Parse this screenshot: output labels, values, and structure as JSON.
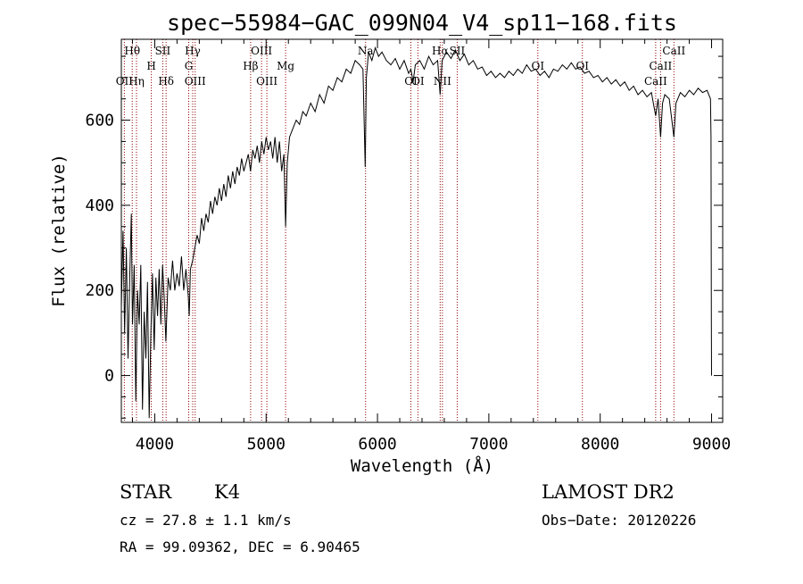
{
  "chart_data": {
    "type": "line",
    "title": "spec−55984−GAC_099N04_V4_sp11−168.fits",
    "xlabel": "Wavelength (Å)",
    "ylabel": "Flux (relative)",
    "xlim": [
      3700,
      9100
    ],
    "ylim": [
      -110,
      790
    ],
    "xticks": [
      4000,
      5000,
      6000,
      7000,
      8000,
      9000
    ],
    "yticks": [
      0,
      200,
      400,
      600
    ],
    "grid": false,
    "series": [
      {
        "name": "spectrum",
        "color": "#000000",
        "points": [
          [
            3700,
            160
          ],
          [
            3715,
            340
          ],
          [
            3730,
            100
          ],
          [
            3745,
            300
          ],
          [
            3760,
            40
          ],
          [
            3775,
            230
          ],
          [
            3790,
            380
          ],
          [
            3800,
            120
          ],
          [
            3815,
            260
          ],
          [
            3830,
            -60
          ],
          [
            3845,
            200
          ],
          [
            3860,
            120
          ],
          [
            3875,
            260
          ],
          [
            3890,
            -80
          ],
          [
            3905,
            150
          ],
          [
            3920,
            40
          ],
          [
            3935,
            220
          ],
          [
            3950,
            -100
          ],
          [
            3965,
            100
          ],
          [
            3980,
            240
          ],
          [
            3995,
            60
          ],
          [
            4010,
            230
          ],
          [
            4025,
            140
          ],
          [
            4040,
            250
          ],
          [
            4055,
            120
          ],
          [
            4070,
            260
          ],
          [
            4085,
            180
          ],
          [
            4100,
            80
          ],
          [
            4120,
            230
          ],
          [
            4140,
            200
          ],
          [
            4160,
            270
          ],
          [
            4180,
            200
          ],
          [
            4200,
            240
          ],
          [
            4220,
            210
          ],
          [
            4240,
            280
          ],
          [
            4260,
            200
          ],
          [
            4280,
            250
          ],
          [
            4300,
            190
          ],
          [
            4310,
            140
          ],
          [
            4320,
            250
          ],
          [
            4340,
            270
          ],
          [
            4360,
            300
          ],
          [
            4380,
            330
          ],
          [
            4400,
            310
          ],
          [
            4420,
            370
          ],
          [
            4440,
            340
          ],
          [
            4460,
            380
          ],
          [
            4480,
            360
          ],
          [
            4500,
            410
          ],
          [
            4520,
            380
          ],
          [
            4540,
            420
          ],
          [
            4560,
            400
          ],
          [
            4580,
            440
          ],
          [
            4600,
            410
          ],
          [
            4620,
            450
          ],
          [
            4640,
            420
          ],
          [
            4660,
            470
          ],
          [
            4680,
            440
          ],
          [
            4700,
            480
          ],
          [
            4720,
            450
          ],
          [
            4740,
            490
          ],
          [
            4760,
            470
          ],
          [
            4780,
            510
          ],
          [
            4800,
            480
          ],
          [
            4820,
            500
          ],
          [
            4840,
            520
          ],
          [
            4860,
            480
          ],
          [
            4880,
            530
          ],
          [
            4900,
            510
          ],
          [
            4920,
            540
          ],
          [
            4940,
            500
          ],
          [
            4960,
            550
          ],
          [
            4980,
            520
          ],
          [
            5000,
            560
          ],
          [
            5020,
            530
          ],
          [
            5040,
            550
          ],
          [
            5060,
            510
          ],
          [
            5080,
            560
          ],
          [
            5100,
            500
          ],
          [
            5120,
            550
          ],
          [
            5140,
            480
          ],
          [
            5160,
            520
          ],
          [
            5175,
            350
          ],
          [
            5190,
            500
          ],
          [
            5210,
            560
          ],
          [
            5240,
            580
          ],
          [
            5270,
            600
          ],
          [
            5300,
            590
          ],
          [
            5330,
            620
          ],
          [
            5360,
            610
          ],
          [
            5400,
            640
          ],
          [
            5440,
            620
          ],
          [
            5480,
            660
          ],
          [
            5520,
            640
          ],
          [
            5560,
            680
          ],
          [
            5600,
            670
          ],
          [
            5640,
            700
          ],
          [
            5680,
            690
          ],
          [
            5720,
            720
          ],
          [
            5760,
            710
          ],
          [
            5800,
            740
          ],
          [
            5840,
            730
          ],
          [
            5870,
            720
          ],
          [
            5890,
            490
          ],
          [
            5900,
            700
          ],
          [
            5920,
            760
          ],
          [
            5950,
            740
          ],
          [
            5980,
            770
          ],
          [
            6010,
            750
          ],
          [
            6040,
            760
          ],
          [
            6080,
            740
          ],
          [
            6120,
            730
          ],
          [
            6160,
            745
          ],
          [
            6200,
            720
          ],
          [
            6240,
            740
          ],
          [
            6280,
            710
          ],
          [
            6300,
            720
          ],
          [
            6320,
            690
          ],
          [
            6340,
            730
          ],
          [
            6380,
            740
          ],
          [
            6420,
            720
          ],
          [
            6460,
            750
          ],
          [
            6500,
            730
          ],
          [
            6540,
            740
          ],
          [
            6563,
            660
          ],
          [
            6580,
            740
          ],
          [
            6620,
            760
          ],
          [
            6660,
            745
          ],
          [
            6700,
            765
          ],
          [
            6740,
            740
          ],
          [
            6780,
            755
          ],
          [
            6820,
            730
          ],
          [
            6860,
            740
          ],
          [
            6900,
            720
          ],
          [
            6940,
            725
          ],
          [
            6980,
            705
          ],
          [
            7020,
            715
          ],
          [
            7060,
            700
          ],
          [
            7100,
            710
          ],
          [
            7140,
            700
          ],
          [
            7180,
            715
          ],
          [
            7220,
            705
          ],
          [
            7260,
            720
          ],
          [
            7300,
            710
          ],
          [
            7340,
            730
          ],
          [
            7380,
            715
          ],
          [
            7420,
            720
          ],
          [
            7460,
            705
          ],
          [
            7500,
            715
          ],
          [
            7540,
            700
          ],
          [
            7580,
            720
          ],
          [
            7620,
            715
          ],
          [
            7660,
            730
          ],
          [
            7700,
            720
          ],
          [
            7740,
            735
          ],
          [
            7780,
            720
          ],
          [
            7820,
            725
          ],
          [
            7860,
            710
          ],
          [
            7900,
            715
          ],
          [
            7940,
            700
          ],
          [
            7980,
            705
          ],
          [
            8020,
            690
          ],
          [
            8060,
            700
          ],
          [
            8100,
            685
          ],
          [
            8140,
            695
          ],
          [
            8180,
            680
          ],
          [
            8220,
            690
          ],
          [
            8260,
            670
          ],
          [
            8300,
            680
          ],
          [
            8340,
            660
          ],
          [
            8380,
            670
          ],
          [
            8420,
            655
          ],
          [
            8460,
            665
          ],
          [
            8498,
            610
          ],
          [
            8520,
            650
          ],
          [
            8542,
            560
          ],
          [
            8560,
            640
          ],
          [
            8580,
            660
          ],
          [
            8620,
            650
          ],
          [
            8662,
            560
          ],
          [
            8680,
            640
          ],
          [
            8720,
            665
          ],
          [
            8760,
            655
          ],
          [
            8800,
            670
          ],
          [
            8840,
            660
          ],
          [
            8880,
            675
          ],
          [
            8920,
            665
          ],
          [
            8960,
            670
          ],
          [
            8990,
            650
          ],
          [
            8995,
            560
          ],
          [
            8998,
            120
          ],
          [
            9000,
            0
          ]
        ]
      }
    ],
    "line_markers": [
      {
        "label": "OΙΙ",
        "wavelength": 3727,
        "row": 3
      },
      {
        "label": "Hθ",
        "wavelength": 3798,
        "row": 1
      },
      {
        "label": "Hη",
        "wavelength": 3836,
        "row": 3
      },
      {
        "label": "SΙΙ",
        "wavelength": 4072,
        "row": 1
      },
      {
        "label": "H",
        "wavelength": 3969,
        "row": 2
      },
      {
        "label": "Hδ",
        "wavelength": 4102,
        "row": 3
      },
      {
        "label": "Hγ",
        "wavelength": 4341,
        "row": 1
      },
      {
        "label": "G",
        "wavelength": 4305,
        "row": 2
      },
      {
        "label": "OΙΙΙ",
        "wavelength": 4363,
        "row": 3
      },
      {
        "label": "OΙΙΙ",
        "wavelength": 4959,
        "row": 1
      },
      {
        "label": "Hβ",
        "wavelength": 4861,
        "row": 2
      },
      {
        "label": "OΙΙΙ",
        "wavelength": 5007,
        "row": 3
      },
      {
        "label": "Mg",
        "wavelength": 5175,
        "row": 2
      },
      {
        "label": "Na",
        "wavelength": 5893,
        "row": 1
      },
      {
        "label": "OΙ",
        "wavelength": 6300,
        "row": 3
      },
      {
        "label": "OΙ",
        "wavelength": 6363,
        "row": 3
      },
      {
        "label": "Hα",
        "wavelength": 6563,
        "row": 1
      },
      {
        "label": "SΙΙ",
        "wavelength": 6716,
        "row": 1
      },
      {
        "label": "NΙΙ",
        "wavelength": 6583,
        "row": 3
      },
      {
        "label": "OΙ",
        "wavelength": 7440,
        "row": 2
      },
      {
        "label": "OΙ",
        "wavelength": 7840,
        "row": 2
      },
      {
        "label": "CaΙΙ",
        "wavelength": 8662,
        "row": 1
      },
      {
        "label": "CaΙΙ",
        "wavelength": 8542,
        "row": 2
      },
      {
        "label": "CaΙΙ",
        "wavelength": 8498,
        "row": 3
      }
    ],
    "marker_color": "#8b0000"
  },
  "info": {
    "object_class": "STAR",
    "subclass": "K4",
    "survey": "LAMOST DR2",
    "redshift_text": "cz = 27.8 ± 1.1 km/s",
    "obs_date_text": "Obs−Date: 20120226",
    "coords_text": "RA =  99.09362, DEC =   6.90465"
  }
}
